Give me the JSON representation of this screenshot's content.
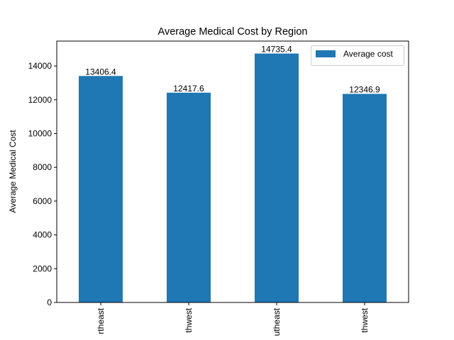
{
  "chart_data": {
    "type": "bar",
    "title": "Average Medical Cost by Region",
    "xlabel": "",
    "ylabel": "Average Medical Cost",
    "categories": [
      "rtheast",
      "thwest",
      "utheast",
      "thwest"
    ],
    "series": [
      {
        "name": "Average cost",
        "values": [
          13406.4,
          12417.6,
          14735.4,
          12346.9
        ],
        "color": "#1f77b4"
      }
    ],
    "data_labels": [
      "13406.4",
      "12417.6",
      "14735.4",
      "12346.9"
    ],
    "ylim": [
      0,
      15472.67
    ],
    "yticks": [
      0,
      2000,
      4000,
      6000,
      8000,
      10000,
      12000,
      14000
    ],
    "ytick_labels": [
      "0",
      "2000",
      "4000",
      "6000",
      "8000",
      "10000",
      "12000",
      "14000"
    ],
    "legend": {
      "position": "top-right",
      "label": "Average cost"
    },
    "grid": false
  }
}
